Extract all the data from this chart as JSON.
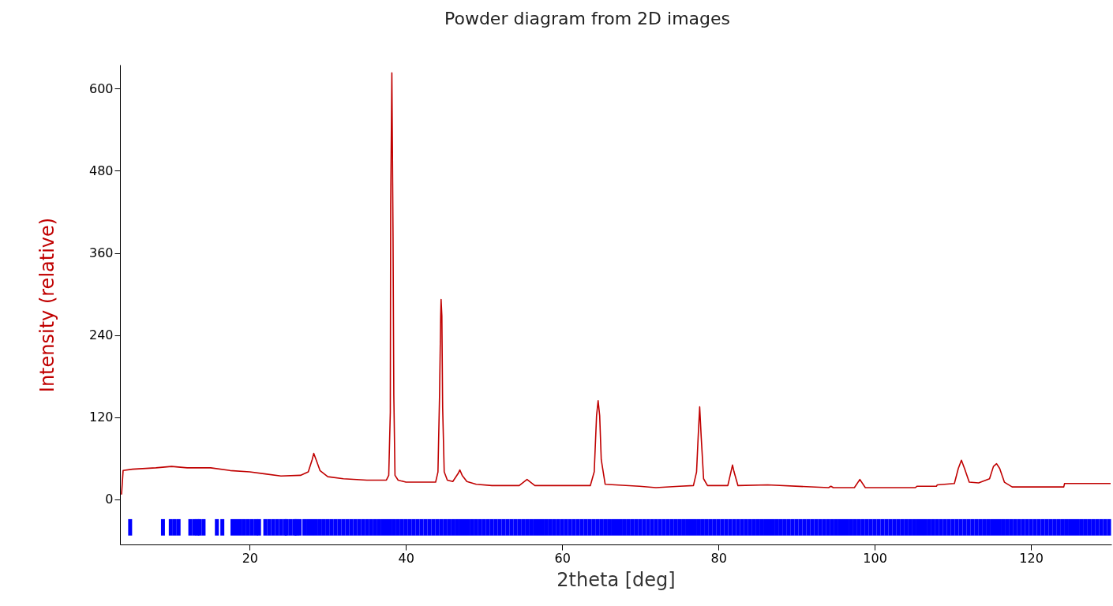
{
  "chart_data": {
    "type": "line",
    "title": "Powder diagram from 2D images",
    "xlabel": "2theta [deg]",
    "ylabel": "Intensity (relative)",
    "xlim": [
      3.4,
      130.3
    ],
    "ylim": [
      -66,
      635
    ],
    "xticks": [
      20,
      40,
      60,
      80,
      100,
      120
    ],
    "yticks": [
      0,
      120,
      240,
      360,
      480,
      600
    ],
    "series": [
      {
        "color": "#c00000",
        "x": [
          3.6,
          3.8,
          5,
          8,
          10,
          12,
          15,
          17.5,
          20,
          22,
          24,
          26.5,
          27.5,
          28,
          28.2,
          28.5,
          29,
          30,
          32,
          35,
          37.5,
          37.8,
          38,
          38.05,
          38.2,
          38.35,
          38.45,
          38.6,
          39,
          40,
          43.8,
          44.1,
          44.3,
          44.45,
          44.5,
          44.6,
          44.7,
          44.9,
          45.3,
          46,
          46.7,
          46.9,
          47.2,
          47.8,
          49,
          51,
          54.5,
          55.5,
          56.5,
          63.6,
          64.1,
          64.4,
          64.6,
          64.8,
          65,
          65.5,
          69.9,
          72,
          75,
          76.8,
          77.2,
          77.4,
          77.6,
          77.8,
          78.1,
          78.6,
          81.2,
          81.6,
          81.8,
          82,
          82.5,
          86.3,
          94.1,
          94.4,
          94.7,
          97.4,
          98.1,
          98.8,
          105.2,
          105.4,
          107.9,
          108,
          110.2,
          110.7,
          111.1,
          111.5,
          112.1,
          113.3,
          114.7,
          115.2,
          115.6,
          116,
          116.6,
          117.6,
          124.2,
          124.3,
          130.2
        ],
        "values": [
          7,
          42,
          44,
          46,
          48,
          46,
          46,
          42,
          40,
          37,
          34,
          35,
          40,
          58,
          67,
          58,
          42,
          33,
          30,
          28,
          28,
          35,
          127,
          430,
          623,
          384,
          152,
          35,
          28,
          25,
          25,
          40,
          150,
          268,
          292,
          268,
          134,
          40,
          28,
          26,
          38,
          43,
          35,
          26,
          22,
          20,
          20,
          29,
          20,
          20,
          40,
          122,
          144,
          122,
          58,
          22,
          19,
          17,
          19,
          20,
          40,
          90,
          135,
          90,
          30,
          20,
          20,
          40,
          50,
          40,
          20,
          21,
          17,
          19,
          17,
          17,
          29,
          17,
          17,
          19,
          19,
          21,
          23,
          45,
          57,
          45,
          25,
          24,
          30,
          48,
          52,
          45,
          25,
          18,
          18,
          23,
          23
        ]
      },
      {
        "type": "bar",
        "color": "#0000ff",
        "x": [
          4.7,
          8.9,
          9.9,
          10.4,
          10.9,
          12.4,
          12.9,
          13.3,
          13.6,
          14.1,
          15.8,
          16.5,
          17.8,
          18.3,
          18.8,
          19.3,
          19.8,
          20.3,
          20.8,
          21.2,
          22,
          22.5,
          23,
          23.5,
          24,
          24.5,
          24.75,
          25.25,
          25.75,
          26,
          26.4,
          27,
          27.5,
          28,
          28.5,
          29,
          29.5,
          30,
          30.5,
          31,
          31.5,
          32,
          32.5,
          33,
          33.5,
          34,
          34.5,
          35,
          35.5,
          36,
          36.5,
          37,
          37.5,
          38,
          38.5,
          39,
          39.5,
          40,
          40.5,
          41,
          41.5,
          42,
          42.5,
          43,
          43.5,
          44,
          44.5,
          45,
          45.5,
          46,
          46.5,
          47,
          47.5,
          48,
          48.5,
          49,
          49.5,
          50,
          50.5,
          51,
          51.5,
          52,
          52.5,
          53,
          53.5,
          54,
          54.5,
          55,
          55.5,
          56,
          56.5,
          57,
          57.5,
          58,
          58.5,
          59,
          59.5,
          60,
          60.5,
          61,
          61.5,
          62,
          62.5,
          63,
          63.5,
          64,
          64.5,
          65,
          65.5,
          66,
          66.5,
          67,
          67.5,
          68,
          68.5,
          69,
          69.5,
          70,
          70.5,
          71,
          71.5,
          72,
          72.5,
          73,
          73.5,
          74,
          74.5,
          75,
          75.5,
          76,
          76.5,
          77,
          77.5,
          78,
          78.5,
          79,
          79.5,
          80,
          80.5,
          81,
          81.5,
          82,
          82.5,
          83,
          83.5,
          84,
          84.5,
          85,
          85.5,
          86,
          86.5,
          87,
          87.5,
          88,
          88.5,
          89,
          89.5,
          90,
          90.5,
          91,
          91.5,
          92,
          92.5,
          93,
          93.5,
          94,
          94.5,
          95,
          95.5,
          96,
          96.5,
          97,
          97.5,
          98,
          98.5,
          99,
          99.5,
          100,
          100.5,
          101,
          101.5,
          102,
          102.5,
          103,
          103.5,
          104,
          104.5,
          105,
          105.5,
          106,
          106.5,
          107,
          107.5,
          108,
          108.5,
          109,
          109.5,
          110,
          110.5,
          111,
          111.5,
          112,
          112.5,
          113,
          113.5,
          114,
          114.5,
          115,
          115.5,
          116,
          116.5,
          117,
          117.5,
          118,
          118.5,
          119,
          119.5,
          120,
          120.5,
          121,
          121.5,
          122,
          122.5,
          123,
          123.5,
          124,
          124.5,
          125,
          125.5,
          126,
          126.5,
          127,
          127.5,
          128,
          128.5,
          129,
          129.5,
          130
        ],
        "base": [
          -53,
          -53,
          -53,
          -53,
          -53,
          -53,
          -53,
          -53,
          -53,
          -53,
          -53,
          -53,
          -53,
          -53,
          -53,
          -53,
          -53,
          -53,
          -53,
          -53,
          -53,
          -53,
          -53,
          -53,
          -53,
          -53,
          -53,
          -53,
          -53,
          -53,
          -53,
          -53,
          -53,
          -53,
          -53,
          -53,
          -53,
          -53,
          -53,
          -53,
          -53,
          -53,
          -53,
          -53,
          -53,
          -53,
          -53,
          -53,
          -53,
          -53,
          -53,
          -53,
          -53,
          -53,
          -53,
          -53,
          -53,
          -53,
          -53,
          -53,
          -53,
          -53,
          -53,
          -53,
          -53,
          -53,
          -53,
          -53,
          -53,
          -53,
          -53,
          -53,
          -53,
          -53,
          -53,
          -53,
          -53,
          -53,
          -53,
          -53,
          -53,
          -53,
          -53,
          -53,
          -53,
          -53,
          -53,
          -53,
          -53,
          -53,
          -53,
          -53,
          -53,
          -53,
          -53,
          -53,
          -53,
          -53,
          -53,
          -53,
          -53,
          -53,
          -53,
          -53,
          -53,
          -53,
          -53,
          -53,
          -53,
          -53,
          -53,
          -53,
          -53,
          -53,
          -53,
          -53,
          -53,
          -53,
          -53,
          -53,
          -53,
          -53,
          -53,
          -53,
          -53,
          -53,
          -53,
          -53,
          -53,
          -53,
          -53,
          -53,
          -53,
          -53,
          -53,
          -53,
          -53,
          -53,
          -53,
          -53,
          -53,
          -53,
          -53,
          -53,
          -53,
          -53,
          -53,
          -53,
          -53,
          -53,
          -53,
          -53,
          -53,
          -53,
          -53,
          -53,
          -53,
          -53,
          -53,
          -53,
          -53,
          -53,
          -53,
          -53,
          -53,
          -53,
          -53,
          -53,
          -53,
          -53,
          -53,
          -53,
          -53,
          -53,
          -53,
          -53,
          -53,
          -53,
          -53,
          -53,
          -53,
          -53,
          -53,
          -53,
          -53,
          -53,
          -53,
          -53,
          -53,
          -53,
          -53,
          -53,
          -53,
          -53,
          -53,
          -53,
          -53,
          -53,
          -53,
          -53,
          -53,
          -53,
          -53,
          -53,
          -53,
          -53,
          -53,
          -53,
          -53,
          -53,
          -53,
          -53,
          -53,
          -53,
          -53,
          -53,
          -53,
          -53,
          -53,
          -53,
          -53,
          -53,
          -53,
          -53,
          -53,
          -53,
          -53,
          -53,
          -53,
          -53,
          -53,
          -53,
          -53,
          -53,
          -53,
          -53,
          -53,
          -53
        ],
        "values": [
          24,
          24,
          24,
          24,
          24,
          24,
          24,
          24,
          24,
          24,
          24,
          24,
          24,
          24,
          24,
          24,
          24,
          24,
          24,
          24,
          24,
          24,
          24,
          24,
          24,
          24,
          24,
          24,
          24,
          24,
          24,
          24,
          24,
          24,
          24,
          24,
          24,
          24,
          24,
          24,
          24,
          24,
          24,
          24,
          24,
          24,
          24,
          24,
          24,
          24,
          24,
          24,
          24,
          24,
          24,
          24,
          24,
          24,
          24,
          24,
          24,
          24,
          24,
          24,
          24,
          24,
          24,
          24,
          24,
          24,
          24,
          24,
          24,
          24,
          24,
          24,
          24,
          24,
          24,
          24,
          24,
          24,
          24,
          24,
          24,
          24,
          24,
          24,
          24,
          24,
          24,
          24,
          24,
          24,
          24,
          24,
          24,
          24,
          24,
          24,
          24,
          24,
          24,
          24,
          24,
          24,
          24,
          24,
          24,
          24,
          24,
          24,
          24,
          24,
          24,
          24,
          24,
          24,
          24,
          24,
          24,
          24,
          24,
          24,
          24,
          24,
          24,
          24,
          24,
          24,
          24,
          24,
          24,
          24,
          24,
          24,
          24,
          24,
          24,
          24,
          24,
          24,
          24,
          24,
          24,
          24,
          24,
          24,
          24,
          24,
          24,
          24,
          24,
          24,
          24,
          24,
          24,
          24,
          24,
          24,
          24,
          24,
          24,
          24,
          24,
          24,
          24,
          24,
          24,
          24,
          24,
          24,
          24,
          24,
          24,
          24,
          24,
          24,
          24,
          24,
          24,
          24,
          24,
          24,
          24,
          24,
          24,
          24,
          24,
          24,
          24,
          24,
          24,
          24,
          24,
          24,
          24,
          24,
          24,
          24,
          24,
          24,
          24,
          24,
          24,
          24,
          24,
          24,
          24,
          24,
          24,
          24,
          24,
          24,
          24,
          24,
          24,
          24,
          24,
          24,
          24,
          24,
          24,
          24,
          24,
          24,
          24,
          24,
          24,
          24,
          24,
          24,
          24,
          24,
          24,
          24,
          24,
          24
        ]
      }
    ]
  }
}
